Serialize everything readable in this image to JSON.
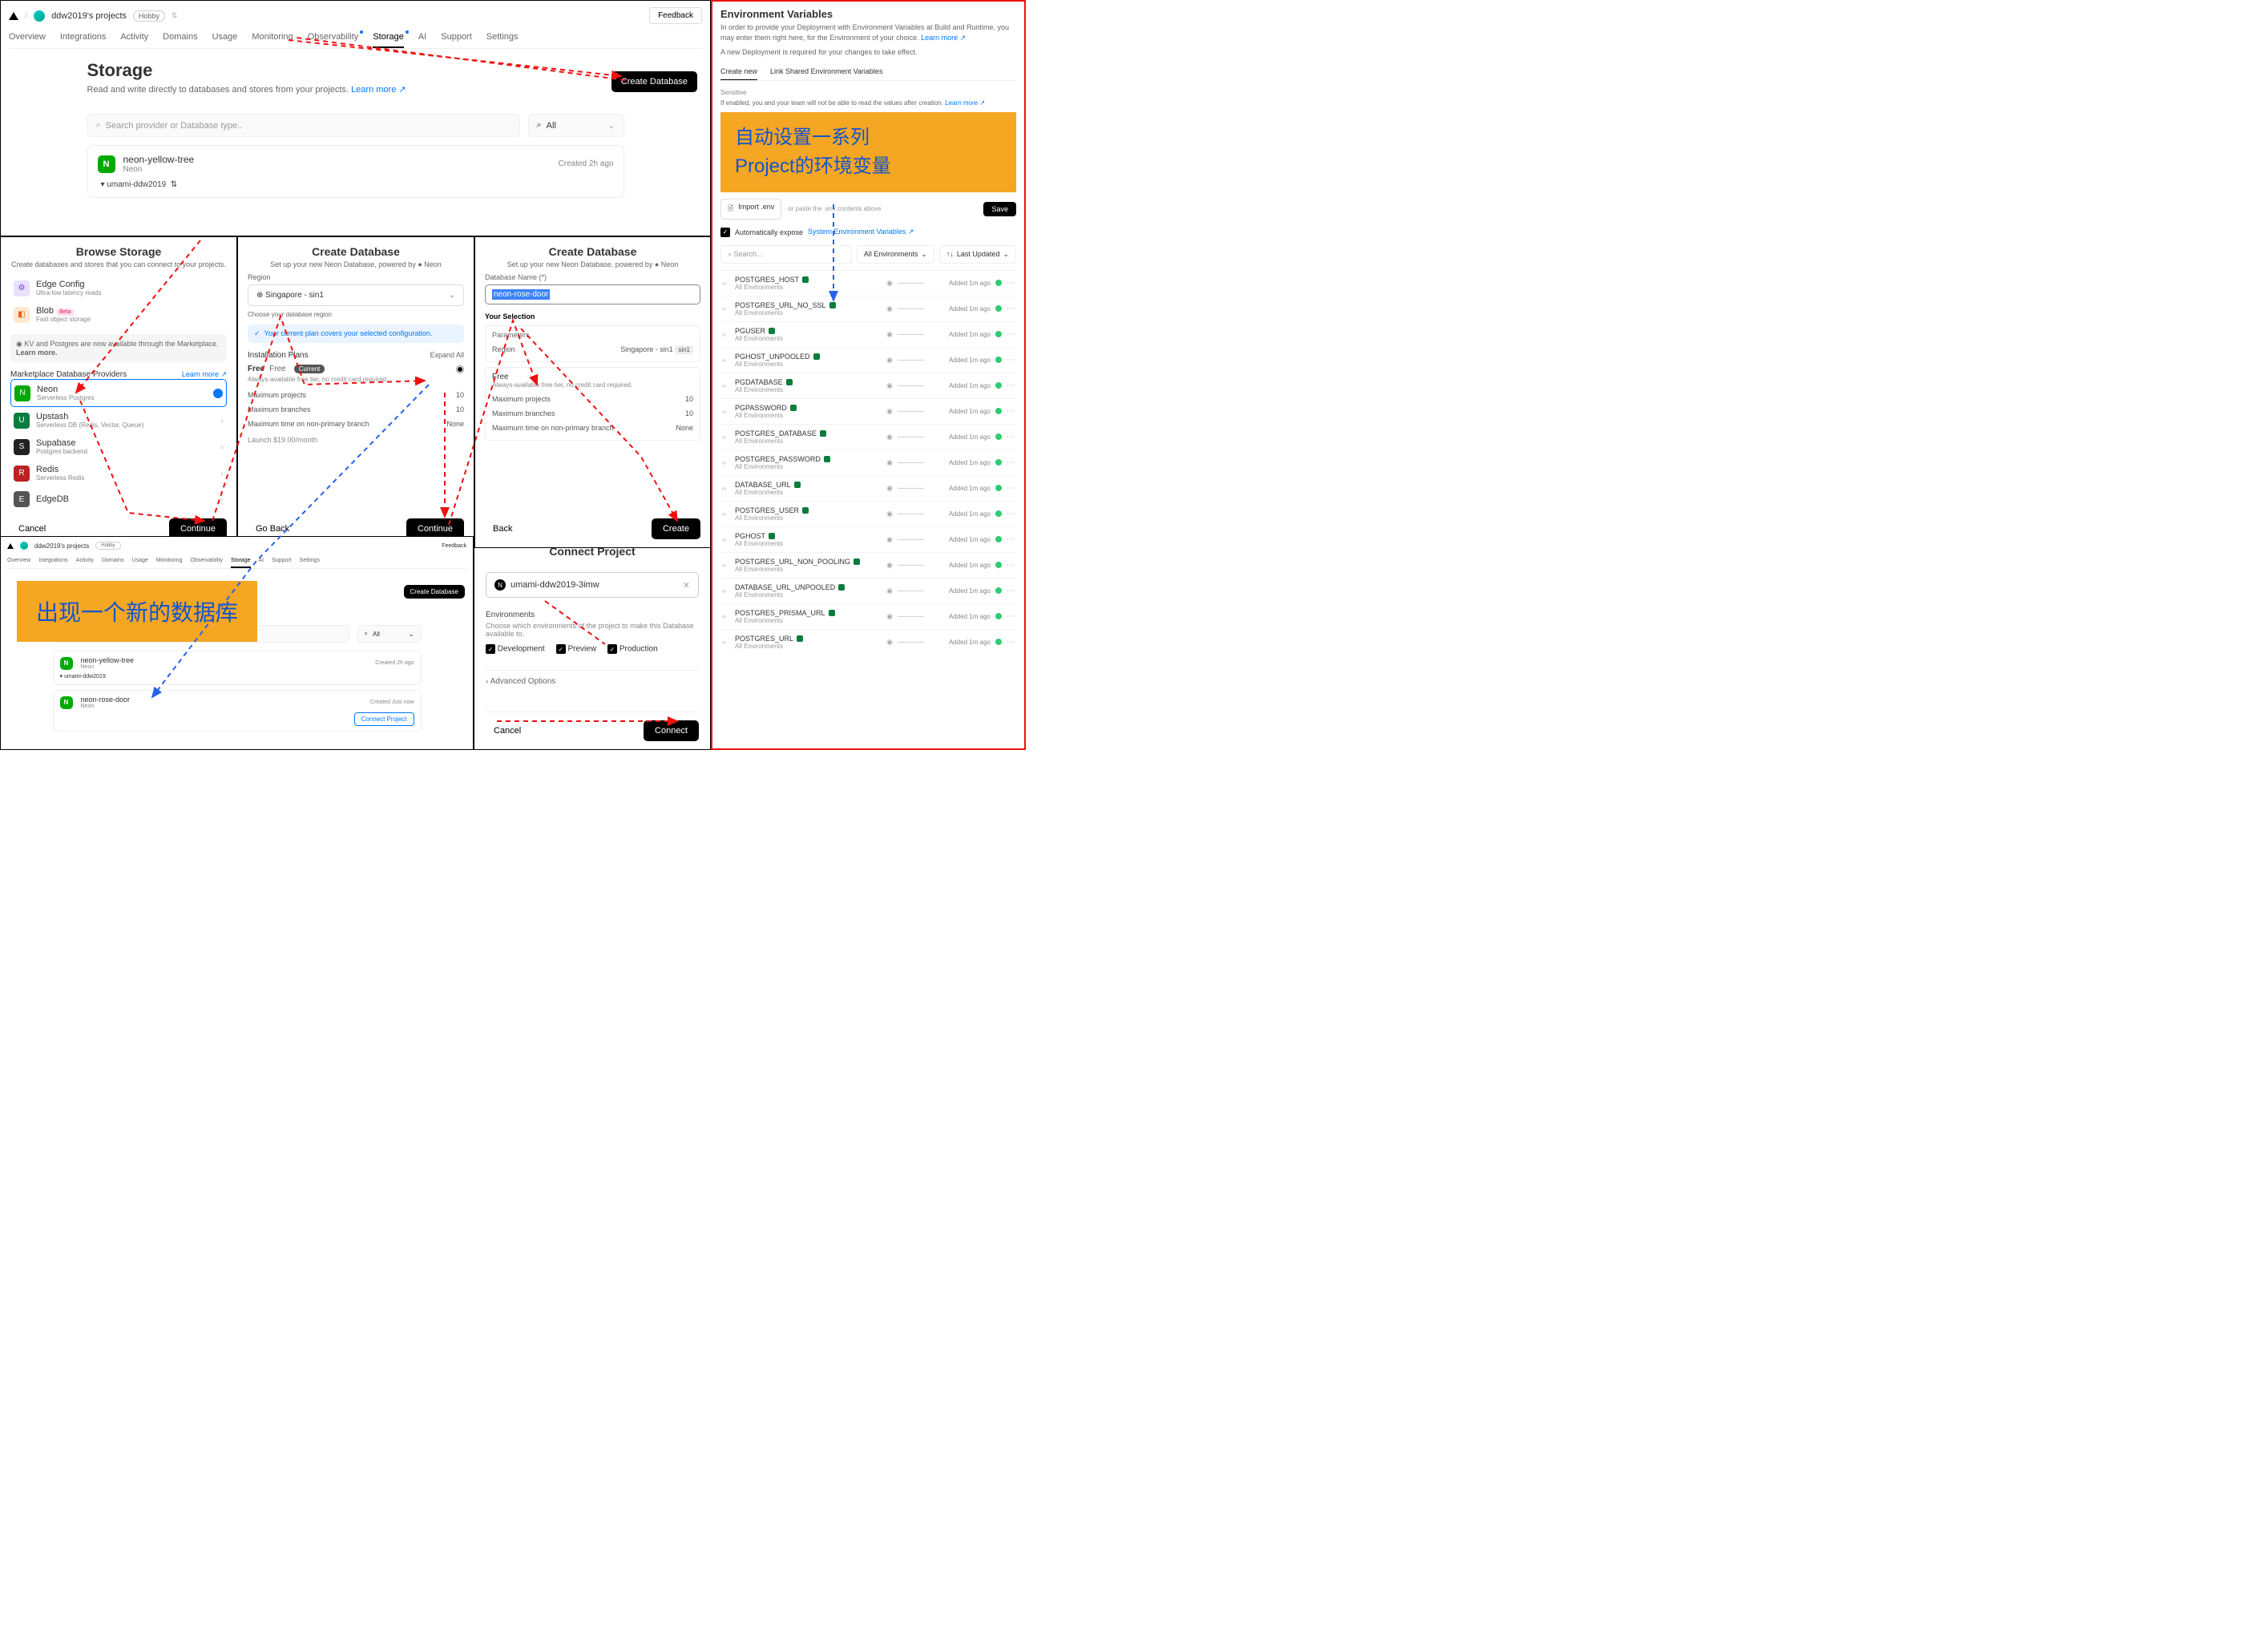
{
  "colors": {
    "accent_blue": "#0070f3",
    "callout_bg": "#f5a623",
    "callout_text": "#1155cc",
    "red_arrow": "#e11",
    "blue_arrow": "#2563eb",
    "green_dot": "#2ecc71"
  },
  "top": {
    "project": "ddw2019's projects",
    "plan_badge": "Hobby",
    "feedback": "Feedback",
    "tabs": [
      "Overview",
      "Integrations",
      "Activity",
      "Domains",
      "Usage",
      "Monitoring",
      "Observability",
      "Storage",
      "AI",
      "Support",
      "Settings"
    ],
    "active_tab": "Storage"
  },
  "storage": {
    "title": "Storage",
    "desc": "Read and write directly to databases and stores from your projects.",
    "learn": "Learn more ↗",
    "create_btn": "Create Database",
    "search_ph": "Search provider or Database type..",
    "all": "All",
    "db1": {
      "name": "neon-yellow-tree",
      "provider": "Neon",
      "created": "Created 2h ago",
      "project": "umami-ddw2019"
    }
  },
  "browse": {
    "title": "Browse Storage",
    "desc": "Create databases and stores that you can connect to your projects.",
    "edge": {
      "name": "Edge Config",
      "sub": "Ultra-low latency reads"
    },
    "blob": {
      "name": "Blob",
      "badge": "Beta",
      "sub": "Fast object storage"
    },
    "info": "KV and Postgres are now available through the Marketplace.",
    "learn": "Learn more.",
    "section": "Marketplace Database Providers",
    "learn2": "Learn more ↗",
    "providers": [
      {
        "name": "Neon",
        "sub": "Serverless Postgres",
        "color": "#0a0",
        "selected": true
      },
      {
        "name": "Upstash",
        "sub": "Serverless DB (Redis, Vector, Queue)",
        "color": "#0a7d3c"
      },
      {
        "name": "Supabase",
        "sub": "Postgres backend",
        "color": "#222"
      },
      {
        "name": "Redis",
        "sub": "Serverless Redis",
        "color": "#b22"
      },
      {
        "name": "EdgeDB",
        "sub": "",
        "color": "#555"
      }
    ],
    "cancel": "Cancel",
    "continue": "Continue"
  },
  "create1": {
    "title": "Create Database",
    "sub": "Set up your new Neon Database, powered by ● Neon",
    "region_lbl": "Region",
    "region_val": "Singapore - sin1",
    "region_hint": "Choose your database region",
    "info": "Your current plan covers your selected configuration.",
    "plans_lbl": "Installation Plans",
    "expand": "Expand All",
    "free": "Free",
    "free_badge": "Current",
    "free_p": "Free",
    "free_desc": "Always-available free tier, no credit card required.",
    "rows": [
      {
        "k": "Maximum projects",
        "v": "10"
      },
      {
        "k": "Maximum branches",
        "v": "10"
      },
      {
        "k": "Maximum time on non-primary branch",
        "v": "None"
      }
    ],
    "launch": "Launch $19.00/month",
    "back": "Go Back",
    "continue": "Continue"
  },
  "create2": {
    "title": "Create Database",
    "sub": "Set up your new Neon Database, powered by ● Neon",
    "name_lbl": "Database Name (*)",
    "name_val": "neon-rose-door",
    "sel_lbl": "Your Selection",
    "params": "Parameters",
    "region_k": "Region",
    "region_v": "Singapore - sin1",
    "sin": "sin1",
    "free": "Free",
    "free_desc": "Always-available free tier, no credit card required.",
    "rows": [
      {
        "k": "Maximum projects",
        "v": "10"
      },
      {
        "k": "Maximum branches",
        "v": "10"
      },
      {
        "k": "Maximum time on non-primary branch",
        "v": "None"
      }
    ],
    "back": "Back",
    "create": "Create"
  },
  "small": {
    "project": "ddw2019's projects",
    "badge": "Hobby",
    "feedback": "Feedback",
    "create": "Create Database",
    "db1": {
      "name": "neon-yellow-tree",
      "provider": "Neon",
      "created": "Created 2h ago",
      "project": "umami-ddw2019"
    },
    "db2": {
      "name": "neon-rose-door",
      "provider": "Neon",
      "created": "Created Just now",
      "connect": "Connect Project"
    },
    "callout": "出现一个新的数据库"
  },
  "connect": {
    "title": "Connect Project",
    "project": "umami-ddw2019-3imw",
    "env_lbl": "Environments",
    "env_desc": "Choose which environments of the project to make this Database available to.",
    "envs": [
      "Development",
      "Preview",
      "Production"
    ],
    "adv": "Advanced Options",
    "cancel": "Cancel",
    "connect_btn": "Connect"
  },
  "envpanel": {
    "title": "Environment Variables",
    "desc": "In order to provide your Deployment with Environment Variables at Build and Runtime, you may enter them right here, for the Environment of your choice.",
    "learn": "Learn more ↗",
    "note": "A new Deployment is required for your changes to take effect.",
    "tab1": "Create new",
    "tab2": "Link Shared Environment Variables",
    "sensitive": "Sensitive",
    "sensitive_desc": "If enabled, you and your team will not be able to read the values after creation.",
    "learn2": "Learn more ↗",
    "callout": "自动设置一系列\nProject的环境变量",
    "import": "Import .env",
    "import_ph": "or paste the .env contents above",
    "save": "Save",
    "auto": "Automatically expose",
    "auto_link": "System Environment Variables ↗",
    "search_ph": "Search...",
    "filter1": "All Environments",
    "filter2": "Last Updated",
    "added": "Added 1m ago",
    "all_env": "All Environments",
    "vars": [
      "POSTGRES_HOST",
      "POSTGRES_URL_NO_SSL",
      "PGUSER",
      "PGHOST_UNPOOLED",
      "PGDATABASE",
      "PGPASSWORD",
      "POSTGRES_DATABASE",
      "POSTGRES_PASSWORD",
      "DATABASE_URL",
      "POSTGRES_USER",
      "PGHOST",
      "POSTGRES_URL_NON_POOLING",
      "DATABASE_URL_UNPOOLED",
      "POSTGRES_PRISMA_URL",
      "POSTGRES_URL"
    ]
  }
}
